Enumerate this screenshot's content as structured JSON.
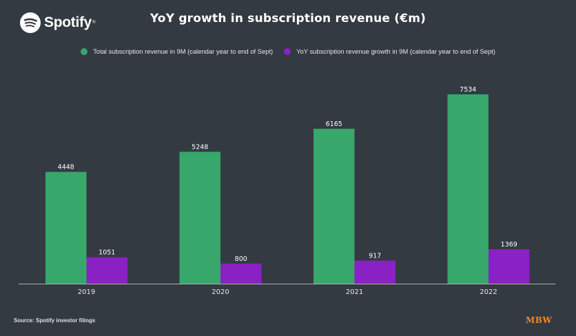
{
  "brand": {
    "name": "Spotify",
    "reg": "®",
    "icon": "spotify-icon"
  },
  "footer": {
    "source": "Source: Spotify investor filings",
    "publisher": "MBW"
  },
  "colors": {
    "background": "#343a42",
    "total": "#37a76b",
    "growth": "#8a21c4",
    "publisher": "#f0892b"
  },
  "chart_data": {
    "type": "bar",
    "title": "YoY growth in subscription revenue (€m)",
    "xlabel": "",
    "ylabel": "",
    "categories": [
      "2019",
      "2020",
      "2021",
      "2022"
    ],
    "series": [
      {
        "name": "Total subscription revenue in 9M (calendar year to end of Sept)",
        "values": [
          4448,
          5248,
          6165,
          7534
        ]
      },
      {
        "name": "YoY subscription revenue growth in 9M (calendar year to end of Sept)",
        "values": [
          1051,
          800,
          917,
          1369
        ]
      }
    ],
    "ylim": [
      0,
      7534
    ],
    "grid": false,
    "legend": "top-center"
  }
}
